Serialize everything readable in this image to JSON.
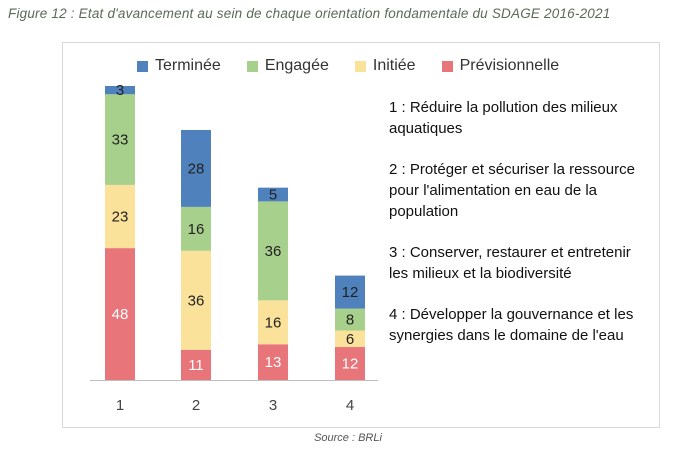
{
  "figure": {
    "caption": "Figure 12 : Etat d'avancement au sein de chaque orientation fondamentale du SDAGE 2016-2021",
    "source": "Source : BRLi"
  },
  "chart_data": {
    "type": "bar",
    "stacked": true,
    "categories": [
      "1",
      "2",
      "3",
      "4"
    ],
    "series": [
      {
        "name": "Prévisionnelle",
        "color": "#e8757a",
        "values": [
          48,
          11,
          13,
          12
        ]
      },
      {
        "name": "Initiée",
        "color": "#fbe29a",
        "values": [
          23,
          36,
          16,
          6
        ]
      },
      {
        "name": "Engagée",
        "color": "#a8d08d",
        "values": [
          33,
          16,
          36,
          8
        ]
      },
      {
        "name": "Terminée",
        "color": "#4f81bd",
        "values": [
          3,
          28,
          5,
          12
        ]
      }
    ],
    "legend_order": [
      "Terminée",
      "Engagée",
      "Initiée",
      "Prévisionnelle"
    ],
    "legend_position": "top",
    "grid": false,
    "ylim": [
      0,
      107
    ]
  },
  "notes": [
    "1 : Réduire la pollution des milieux aquatiques",
    "2 : Protéger et sécuriser la ressource pour l'alimentation en eau de la population",
    "3 : Conserver, restaurer et entretenir les milieux et la biodiversité",
    "4 : Développer la gouvernance et les synergies dans le domaine de l'eau"
  ]
}
